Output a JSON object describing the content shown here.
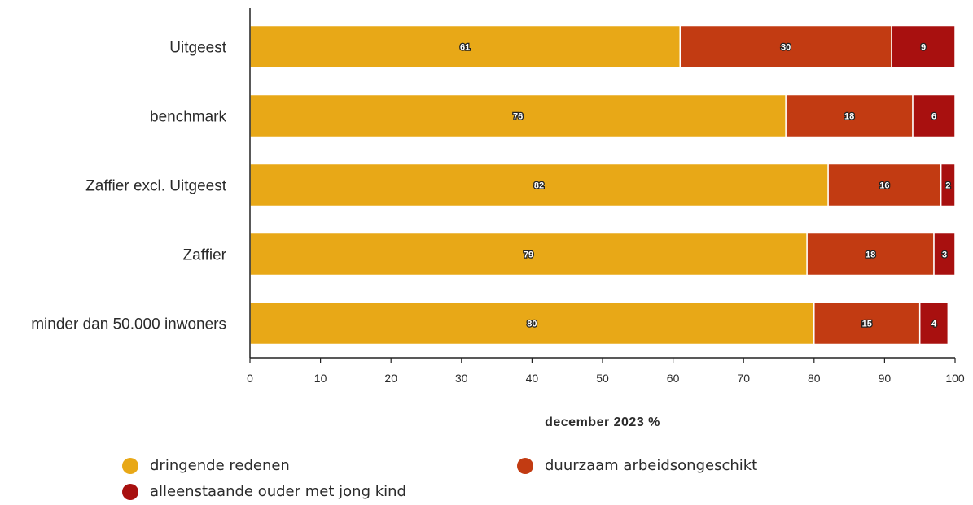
{
  "chart_data": {
    "type": "bar",
    "orientation": "horizontal",
    "stacked": true,
    "categories": [
      "Uitgeest",
      "benchmark",
      "Zaffier excl. Uitgeest",
      "Zaffier",
      "minder dan 50.000 inwoners"
    ],
    "series": [
      {
        "name": "dringende redenen",
        "values": [
          61,
          76,
          82,
          79,
          80
        ],
        "color": "#E8A817"
      },
      {
        "name": "duurzaam arbeidsongeschikt",
        "values": [
          30,
          18,
          16,
          18,
          15
        ],
        "color": "#C23B12"
      },
      {
        "name": "alleenstaande ouder met jong kind",
        "values": [
          9,
          6,
          2,
          3,
          4
        ],
        "color": "#A8100F"
      }
    ],
    "xlabel": "december 2023 %",
    "xlim": [
      0,
      100
    ],
    "xticks": [
      0,
      10,
      20,
      30,
      40,
      50,
      60,
      70,
      80,
      90,
      100
    ],
    "grid": false,
    "legend_position": "bottom"
  },
  "legend": {
    "items": [
      {
        "label": "dringende redenen",
        "color": "#E8A817"
      },
      {
        "label": "duurzaam arbeidsongeschikt",
        "color": "#C23B12"
      },
      {
        "label": "alleenstaande ouder met jong kind",
        "color": "#A8100F"
      }
    ]
  }
}
